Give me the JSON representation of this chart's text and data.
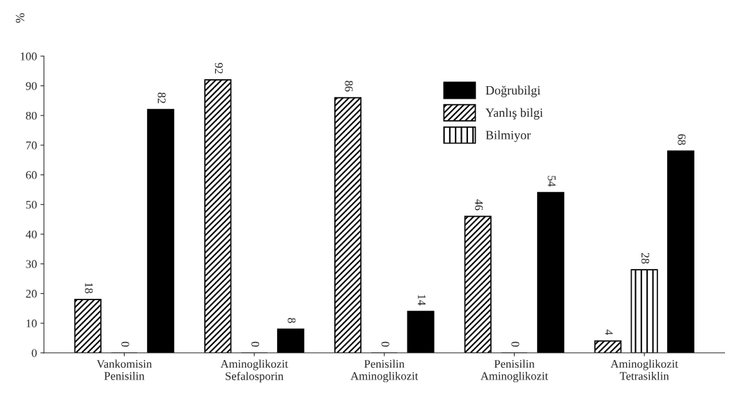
{
  "chart_data": {
    "type": "bar",
    "ylabel": "%",
    "categories": [
      "Vankomisin\nPenisilin",
      "Aminoglikozit\nSefalosporin",
      "Penisilin\nAminoglikozit",
      "Penisilin\nAminoglikozit",
      "Aminoglikozit\nTetrasiklin"
    ],
    "series": [
      {
        "name": "Yanlış bilgi",
        "color": "#000000",
        "values": [
          18,
          92,
          86,
          46,
          4
        ]
      },
      {
        "name": "Bilmiyor",
        "color": "#000000",
        "values": [
          0,
          0,
          0,
          0,
          28
        ]
      },
      {
        "name": "Doğrubilgi",
        "color": "#000000",
        "values": [
          82,
          8,
          14,
          54,
          68
        ]
      }
    ],
    "ylim": [
      0,
      100
    ],
    "yticks": [
      0,
      10,
      20,
      30,
      40,
      50,
      60,
      70,
      80,
      90,
      100
    ],
    "data_labels": true,
    "legend": "top right",
    "grid": false
  }
}
